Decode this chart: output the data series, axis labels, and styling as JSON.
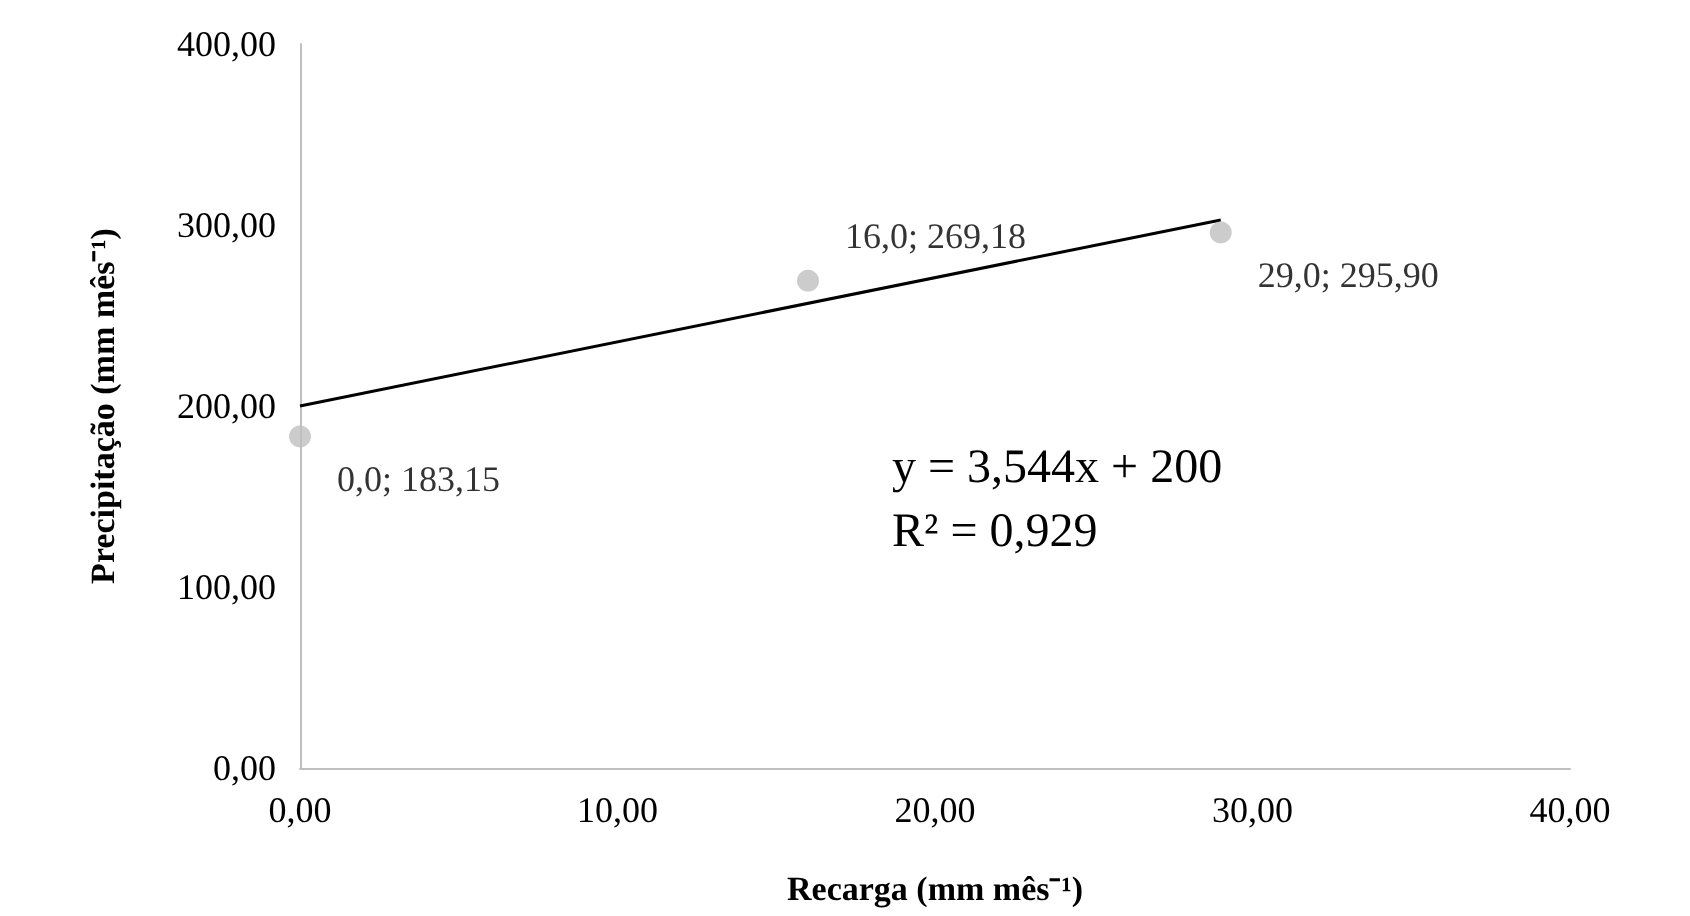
{
  "chart_data": {
    "type": "scatter",
    "xlabel": "Recarga (mm mês⁻¹)",
    "ylabel": "Precipitação (mm mês⁻¹)",
    "xlim": [
      0,
      40
    ],
    "xticks": [
      {
        "value": 0,
        "label": "0,00"
      },
      {
        "value": 10,
        "label": "10,00"
      },
      {
        "value": 20,
        "label": "20,00"
      },
      {
        "value": 30,
        "label": "30,00"
      },
      {
        "value": 40,
        "label": "40,00"
      }
    ],
    "ylim": [
      0,
      400
    ],
    "yticks": [
      {
        "value": 0,
        "label": "0,00"
      },
      {
        "value": 100,
        "label": "100,00"
      },
      {
        "value": 200,
        "label": "200,00"
      },
      {
        "value": 300,
        "label": "300,00"
      },
      {
        "value": 400,
        "label": "400,00"
      }
    ],
    "series": [
      {
        "type": "scatter",
        "color": "#bfbfbf",
        "marker": "circle",
        "x": [
          0,
          16,
          29
        ],
        "values": [
          183.15,
          269.18,
          295.9
        ],
        "value_labels": [
          "0,0; 183,15",
          "16,0; 269,18",
          "29,0; 295,90"
        ]
      },
      {
        "type": "line",
        "color": "#000000",
        "marker": "none",
        "x": [
          0,
          29
        ],
        "values": [
          200,
          302.8
        ]
      }
    ],
    "annotations": [
      "y = 3,544x + 200",
      "R² = 0,929"
    ]
  }
}
